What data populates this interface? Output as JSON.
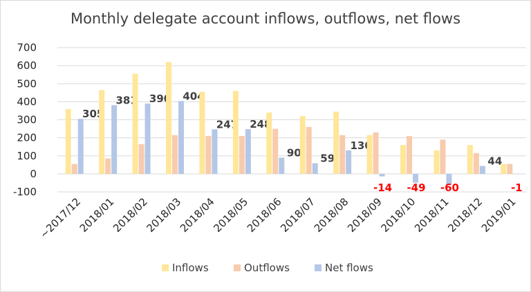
{
  "chart_data": {
    "type": "bar",
    "title": "Monthly delegate account inflows, outflows, net flows",
    "xlabel": "",
    "ylabel": "",
    "ylim": [
      -100,
      700
    ],
    "yticks": [
      -100,
      0,
      100,
      200,
      300,
      400,
      500,
      600,
      700
    ],
    "grid": true,
    "legend_position": "bottom",
    "categories": [
      "~2017/12",
      "2018/01",
      "2018/02",
      "2018/03",
      "2018/04",
      "2018/05",
      "2018/06",
      "2018/07",
      "2018/08",
      "2018/09",
      "2018/10",
      "2018/11",
      "2018/12",
      "2019/01"
    ],
    "series": [
      {
        "name": "Inflows",
        "color": "#FFE699",
        "values": [
          360,
          465,
          555,
          620,
          455,
          460,
          340,
          320,
          345,
          215,
          160,
          130,
          160,
          55
        ]
      },
      {
        "name": "Outflows",
        "color": "#F8CBAD",
        "values": [
          55,
          85,
          165,
          215,
          210,
          210,
          250,
          260,
          215,
          230,
          210,
          190,
          115,
          55
        ]
      },
      {
        "name": "Net flows",
        "color": "#B4C7E7",
        "values": [
          305,
          381,
          390,
          404,
          247,
          248,
          90,
          59,
          130,
          -14,
          -49,
          -60,
          44,
          -1
        ]
      }
    ],
    "data_labels": [
      "305",
      "381",
      "390",
      "404",
      "247",
      "248",
      "90",
      "59",
      "130",
      "-14",
      "-49",
      "-60",
      "44",
      "-1"
    ],
    "negative_label_color": "#FF0000",
    "positive_label_color": "#404040"
  }
}
